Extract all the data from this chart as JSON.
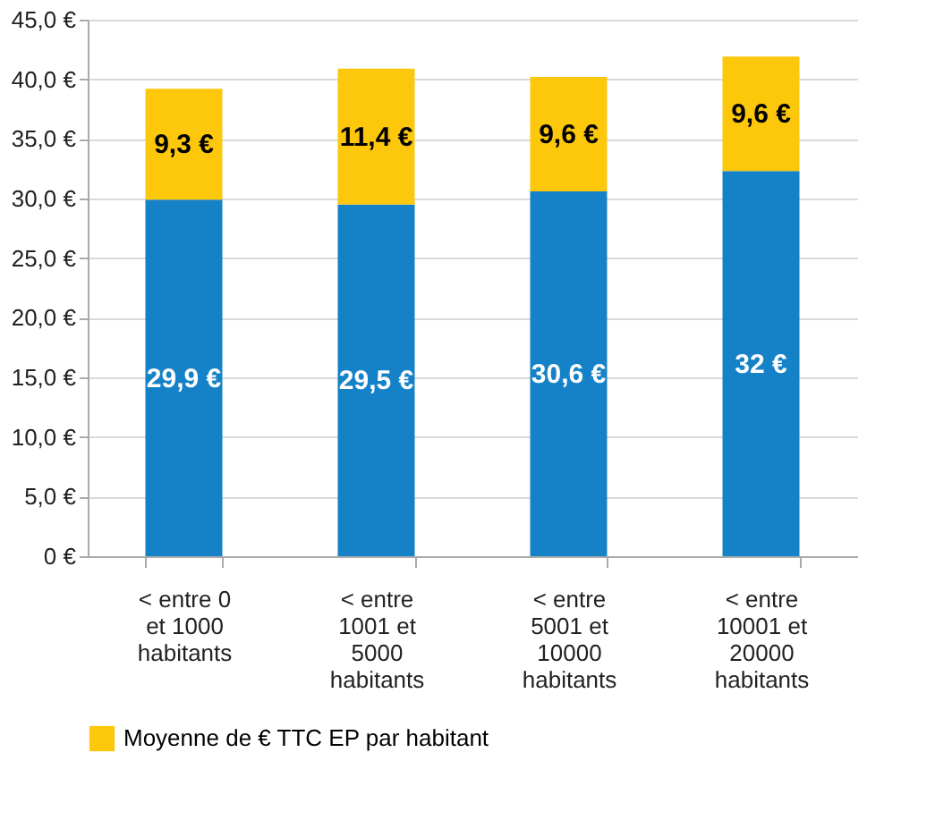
{
  "chart_data": {
    "type": "bar",
    "stacked": true,
    "categories": [
      "< entre 0 et 1000 habitants",
      "< entre 1001 et 5000 habitants",
      "< entre 5001 et 10000 habitants",
      "< entre 10001 et 20000 habitants"
    ],
    "series": [
      {
        "color": "#1582c8",
        "values": [
          29.9,
          29.5,
          30.6,
          32.3
        ],
        "value_labels": [
          "29,9 €",
          "29,5 €",
          "30,6 €",
          "32 €"
        ]
      },
      {
        "name": "Moyenne de € TTC EP par habitant",
        "color": "#fdc70c",
        "values": [
          9.3,
          11.4,
          9.6,
          9.6
        ],
        "value_labels": [
          "9,3 €",
          "11,4 €",
          "9,6 €",
          "9,6 €"
        ]
      }
    ],
    "ylim": [
      0,
      45
    ],
    "yticks": [
      {
        "value": 0,
        "label": "0 €"
      },
      {
        "value": 5,
        "label": "5,0 €"
      },
      {
        "value": 10,
        "label": "10,0 €"
      },
      {
        "value": 15,
        "label": "15,0 €"
      },
      {
        "value": 20,
        "label": "20,0 €"
      },
      {
        "value": 25,
        "label": "25,0 €"
      },
      {
        "value": 30,
        "label": "30,0 €"
      },
      {
        "value": 35,
        "label": "35,0 €"
      },
      {
        "value": 40,
        "label": "40,0 €"
      },
      {
        "value": 45,
        "label": "45,0 €"
      }
    ],
    "grid": "y",
    "legend": "bottom left"
  }
}
